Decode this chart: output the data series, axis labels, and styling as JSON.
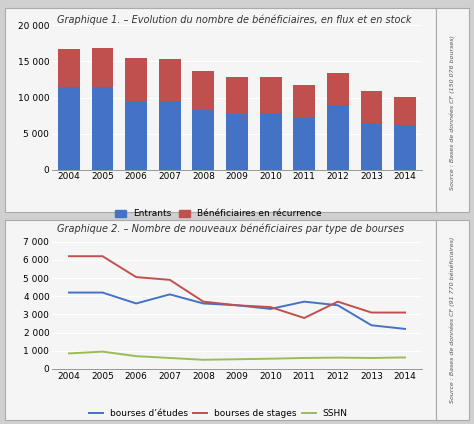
{
  "years": [
    2004,
    2005,
    2006,
    2007,
    2008,
    2009,
    2010,
    2011,
    2012,
    2013,
    2014
  ],
  "chart1": {
    "title": "Graphique 1. – Evolution du nombre de bénéficiaires, en flux et en stock",
    "entrants": [
      11500,
      11500,
      9500,
      9500,
      8200,
      7700,
      7800,
      7200,
      9000,
      6500,
      6200
    ],
    "recurrence": [
      5200,
      5400,
      6000,
      5900,
      5500,
      5200,
      5000,
      4600,
      4400,
      4400,
      3900
    ],
    "color_entrants": "#4472C4",
    "color_recurrence": "#C0504D",
    "legend_entrants": "Entrants",
    "legend_recurrence": "Bénéficiaires en récurrence",
    "ylim": [
      0,
      20000
    ],
    "yticks": [
      0,
      5000,
      10000,
      15000,
      20000
    ],
    "source": "Source : Bases de données CF (150 076 bourses)"
  },
  "chart2": {
    "title": "Graphique 2. – Nombre de nouveaux bénéficiaires par type de bourses",
    "etudes": [
      4200,
      4200,
      3600,
      4100,
      3600,
      3500,
      3300,
      3700,
      3500,
      2400,
      2200
    ],
    "stages": [
      6200,
      6200,
      5050,
      4900,
      3700,
      3500,
      3400,
      2800,
      3700,
      3100,
      3100
    ],
    "sshn": [
      850,
      950,
      700,
      600,
      500,
      530,
      560,
      600,
      620,
      600,
      630
    ],
    "color_etudes": "#4472C4",
    "color_stages": "#C0504D",
    "color_sshn": "#9BBB59",
    "legend_etudes": "bourses d’études",
    "legend_stages": "bourses de stages",
    "legend_sshn": "SSHN",
    "ylim": [
      0,
      7000
    ],
    "yticks": [
      0,
      1000,
      2000,
      3000,
      4000,
      5000,
      6000,
      7000
    ],
    "source": "Source : Bases de données CF (91 770 bénéficiaires)"
  },
  "outer_bg": "#D0D0D0",
  "panel_bg": "#F5F5F5",
  "grid_color": "#FFFFFF"
}
